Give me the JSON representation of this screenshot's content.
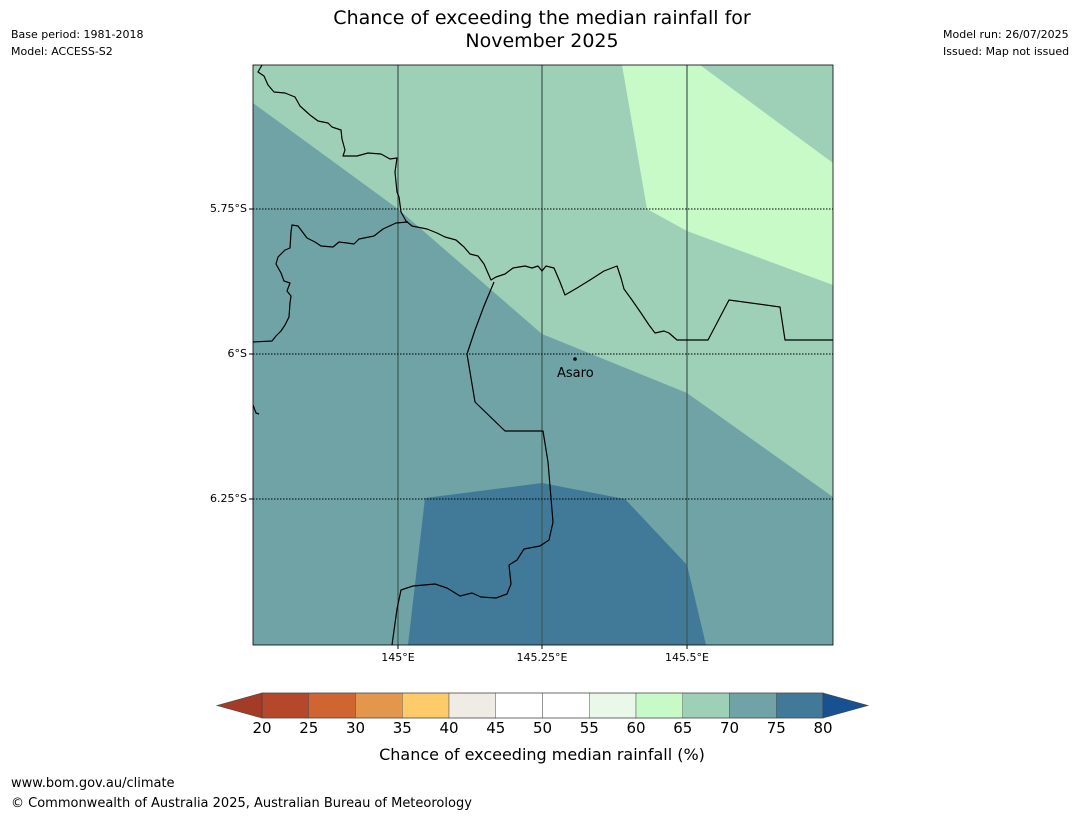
{
  "header": {
    "title_line1": "Chance of exceeding the median rainfall for",
    "title_line2": "November 2025",
    "base_period": "Base period: 1981-2018",
    "model": "Model: ACCESS-S2",
    "model_run": "Model run: 26/07/2025",
    "issued": "Issued: Map not issued"
  },
  "map": {
    "lat_labels": [
      "5.75°S",
      "6°S",
      "6.25°S"
    ],
    "lon_labels": [
      "145°E",
      "145.25°E",
      "145.5°E"
    ],
    "place": {
      "name": "Asaro"
    },
    "zone_colors": {
      "c60_65": "#c8fac8",
      "c65_70": "#9ed0b8",
      "c70_75": "#6fa3a6",
      "c75_80": "#417a98"
    }
  },
  "colorbar": {
    "ticks": [
      "20",
      "25",
      "30",
      "35",
      "40",
      "45",
      "50",
      "55",
      "60",
      "65",
      "70",
      "75",
      "80"
    ],
    "colors": [
      "#b5472a",
      "#cf6530",
      "#e3974c",
      "#fecb6b",
      "#efebe5",
      "#ffffff",
      "#ffffff",
      "#e9f8e9",
      "#c8fac8",
      "#9ed0b8",
      "#6fa3a6",
      "#417a98"
    ],
    "below_color": "#a33b26",
    "above_color": "#175191",
    "label": "Chance of exceeding median rainfall (%)"
  },
  "footer": {
    "url": "www.bom.gov.au/climate",
    "copyright": "© Commonwealth of Australia 2025, Australian Bureau of Meteorology"
  }
}
